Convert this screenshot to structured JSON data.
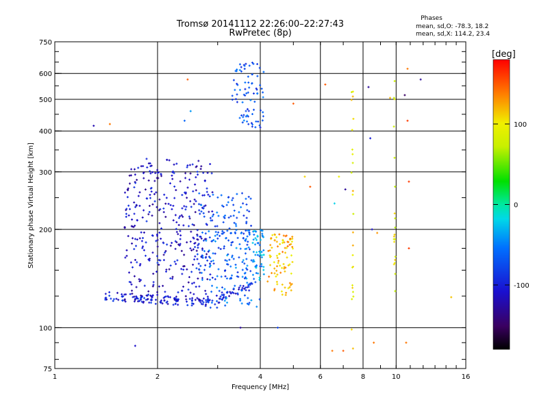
{
  "title": {
    "line1": "Tromsø 20141112 22:26:00–22:27:43",
    "line2": "RwPretec (8p)"
  },
  "phases": {
    "heading": "Phases",
    "o_line": "mean, sd,O: -78.3, 18.2",
    "x_line": "mean, sd,X: 114.2, 23.4"
  },
  "colorbar": {
    "label": "[deg]",
    "ticks": [
      "100",
      "0",
      "-100"
    ],
    "range": [
      -180,
      180
    ]
  },
  "chart_data": {
    "type": "scatter",
    "xlabel": "Frequency [MHz]",
    "ylabel": "Stationary phase Virtual Height [km]",
    "xscale": "log",
    "yscale": "log",
    "xlim": [
      1,
      16
    ],
    "ylim": [
      75,
      750
    ],
    "xticks": [
      1,
      2,
      4,
      6,
      8,
      10,
      16
    ],
    "xtick_labels": [
      "1",
      "2",
      "4",
      "6",
      "8",
      "10",
      "16"
    ],
    "yticks": [
      75,
      100,
      200,
      300,
      400,
      500,
      600,
      750
    ],
    "ytick_labels": [
      "75",
      "100",
      "200",
      "300",
      "400",
      "500",
      "600",
      "750"
    ],
    "grid_x": [
      2,
      4,
      6,
      8,
      10
    ],
    "grid_y": [
      100,
      200,
      300,
      400,
      500,
      600
    ],
    "color_variable": "phase [deg]",
    "clusters": [
      {
        "desc": "O-mode F-trace lower",
        "f_range": [
          1.4,
          3.8
        ],
        "h_center": 125,
        "phase": -100,
        "count": 160
      },
      {
        "desc": "O-mode lower F-region dense",
        "f_range": [
          1.6,
          2.9
        ],
        "h_range": [
          120,
          330
        ],
        "phase": -110,
        "count": 380
      },
      {
        "desc": "O-mode mid trace",
        "f_range": [
          2.6,
          3.8
        ],
        "h_range": [
          140,
          260
        ],
        "phase": -70,
        "count": 140
      },
      {
        "desc": "O-mode rising trace",
        "f_range": [
          2.8,
          4.0
        ],
        "h_range": [
          115,
          200
        ],
        "phase": -60,
        "count": 90
      },
      {
        "desc": "O-mode near 4 MHz",
        "f_range": [
          3.8,
          4.1
        ],
        "h_range": [
          140,
          200
        ],
        "phase": -40,
        "count": 50
      },
      {
        "desc": "X-mode trace",
        "f_range": [
          4.2,
          5.0
        ],
        "h_range": [
          125,
          195
        ],
        "phase": 120,
        "count": 90
      },
      {
        "desc": "high-altitude echoes",
        "f_range": [
          3.3,
          4.1
        ],
        "h_range": [
          410,
          650
        ],
        "phase": -70,
        "count": 80
      },
      {
        "desc": "spurious echoes 7.4 MHz",
        "f": 7.45,
        "h_range": [
          80,
          590
        ],
        "phase": 100,
        "count": 25
      },
      {
        "desc": "spurious echoes 9.9 MHz",
        "f": 9.9,
        "h_range": [
          120,
          590
        ],
        "phase": 90,
        "count": 20
      }
    ],
    "points": [
      {
        "f": 1.3,
        "h": 415,
        "phase": -120
      },
      {
        "f": 1.45,
        "h": 420,
        "phase": 140
      },
      {
        "f": 1.72,
        "h": 88,
        "phase": -110
      },
      {
        "f": 2.45,
        "h": 575,
        "phase": 150
      },
      {
        "f": 2.4,
        "h": 430,
        "phase": -60
      },
      {
        "f": 2.5,
        "h": 460,
        "phase": -40
      },
      {
        "f": 3.5,
        "h": 100,
        "phase": -130
      },
      {
        "f": 4.0,
        "h": 410,
        "phase": -100
      },
      {
        "f": 4.5,
        "h": 100,
        "phase": -80
      },
      {
        "f": 5.0,
        "h": 485,
        "phase": 150
      },
      {
        "f": 5.4,
        "h": 290,
        "phase": 110
      },
      {
        "f": 5.6,
        "h": 270,
        "phase": 150
      },
      {
        "f": 6.2,
        "h": 555,
        "phase": 150
      },
      {
        "f": 6.5,
        "h": 85,
        "phase": 140
      },
      {
        "f": 6.6,
        "h": 240,
        "phase": -20
      },
      {
        "f": 6.8,
        "h": 290,
        "phase": 100
      },
      {
        "f": 7.0,
        "h": 85,
        "phase": 150
      },
      {
        "f": 7.1,
        "h": 265,
        "phase": -130
      },
      {
        "f": 8.3,
        "h": 545,
        "phase": -130
      },
      {
        "f": 8.4,
        "h": 380,
        "phase": -100
      },
      {
        "f": 8.5,
        "h": 200,
        "phase": -110
      },
      {
        "f": 8.6,
        "h": 90,
        "phase": 140
      },
      {
        "f": 8.8,
        "h": 195,
        "phase": 130
      },
      {
        "f": 9.6,
        "h": 505,
        "phase": 120
      },
      {
        "f": 10.6,
        "h": 515,
        "phase": -150
      },
      {
        "f": 10.8,
        "h": 620,
        "phase": 140
      },
      {
        "f": 10.8,
        "h": 430,
        "phase": 160
      },
      {
        "f": 10.9,
        "h": 280,
        "phase": 160
      },
      {
        "f": 10.9,
        "h": 175,
        "phase": 160
      },
      {
        "f": 10.7,
        "h": 90,
        "phase": 140
      },
      {
        "f": 11.8,
        "h": 575,
        "phase": -130
      },
      {
        "f": 14.5,
        "h": 124,
        "phase": 115
      }
    ]
  }
}
